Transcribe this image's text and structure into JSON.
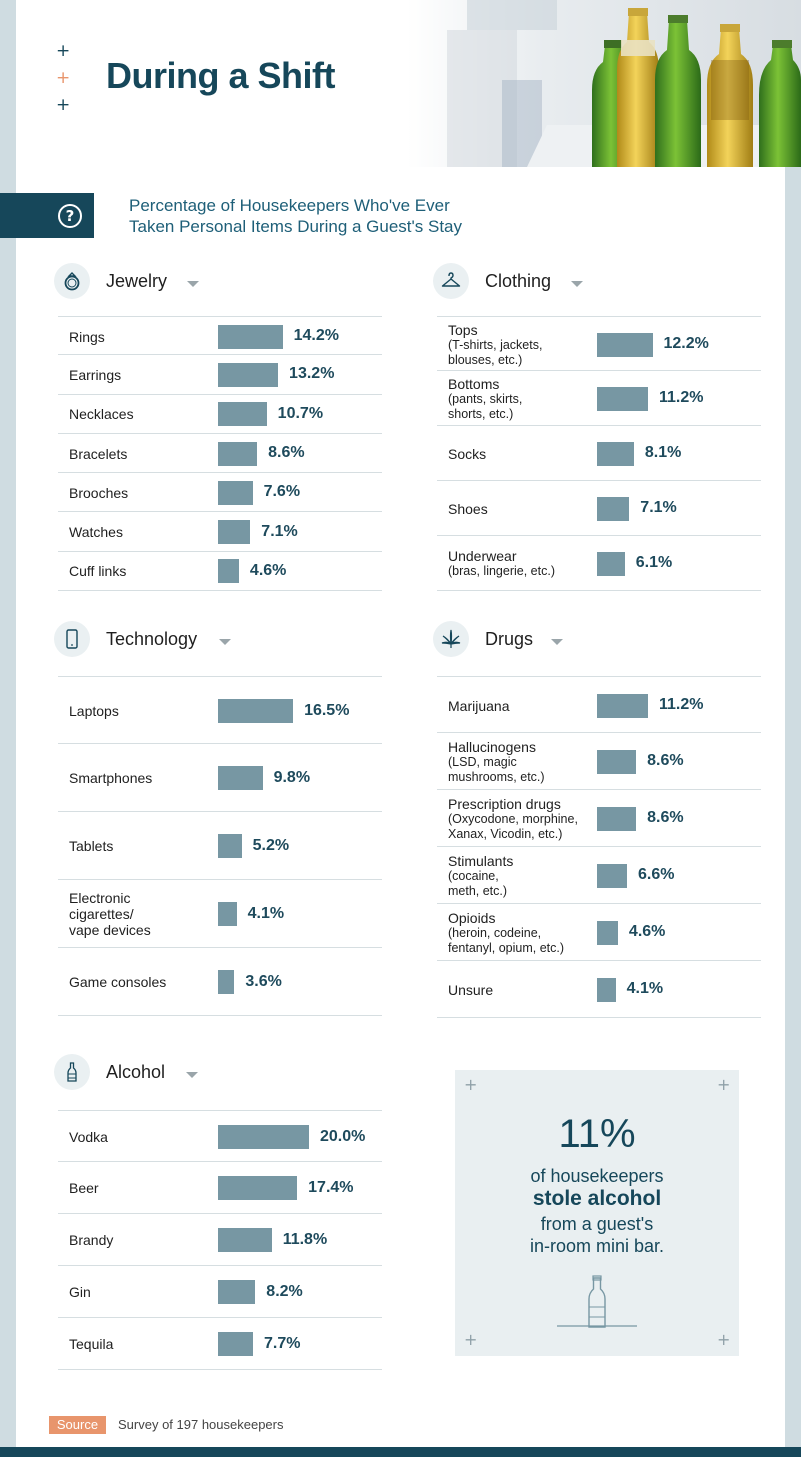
{
  "title": "During a Shift",
  "subtitle": [
    "Percentage of Housekeepers Who've Ever",
    "Taken Personal Items During a Guest's Stay"
  ],
  "colors": {
    "dark_teal": "#16475a",
    "bar": "#7797a3",
    "accent_orange": "#e8956c",
    "plus": "#16475a"
  },
  "sections": {
    "jewelry": {
      "title": "Jewelry",
      "icon": "ring-icon"
    },
    "clothing": {
      "title": "Clothing",
      "icon": "hanger-icon"
    },
    "technology": {
      "title": "Technology",
      "icon": "smartphone-icon"
    },
    "drugs": {
      "title": "Drugs",
      "icon": "cannabis-leaf-icon"
    },
    "alcohol": {
      "title": "Alcohol",
      "icon": "bottle-icon"
    }
  },
  "chart_data": [
    {
      "type": "bar",
      "title": "Jewelry",
      "categories": [
        "Rings",
        "Earrings",
        "Necklaces",
        "Bracelets",
        "Brooches",
        "Watches",
        "Cuff links"
      ],
      "sublabels": [
        "",
        "",
        "",
        "",
        "",
        "",
        ""
      ],
      "values": [
        14.2,
        13.2,
        10.7,
        8.6,
        7.6,
        7.1,
        4.6
      ],
      "labels": [
        "14.2%",
        "13.2%",
        "10.7%",
        "8.6%",
        "7.6%",
        "7.1%",
        "4.6%"
      ]
    },
    {
      "type": "bar",
      "title": "Clothing",
      "categories": [
        "Tops",
        "Bottoms",
        "Socks",
        "Shoes",
        "Underwear"
      ],
      "sublabels": [
        "(T-shirts, jackets,\nblouses, etc.)",
        "(pants, skirts,\nshorts, etc.)",
        "",
        "",
        "(bras, lingerie, etc.)"
      ],
      "values": [
        12.2,
        11.2,
        8.1,
        7.1,
        6.1
      ],
      "labels": [
        "12.2%",
        "11.2%",
        "8.1%",
        "7.1%",
        "6.1%"
      ]
    },
    {
      "type": "bar",
      "title": "Technology",
      "categories": [
        "Laptops",
        "Smartphones",
        "Tablets",
        "Electronic\ncigarettes/\nvape devices",
        "Game consoles"
      ],
      "sublabels": [
        "",
        "",
        "",
        "",
        ""
      ],
      "values": [
        16.5,
        9.8,
        5.2,
        4.1,
        3.6
      ],
      "labels": [
        "16.5%",
        "9.8%",
        "5.2%",
        "4.1%",
        "3.6%"
      ]
    },
    {
      "type": "bar",
      "title": "Drugs",
      "categories": [
        "Marijuana",
        "Hallucinogens",
        "Prescription drugs",
        "Stimulants",
        "Opioids",
        "Unsure"
      ],
      "sublabels": [
        "",
        "(LSD, magic\nmushrooms, etc.)",
        "(Oxycodone, morphine,\nXanax, Vicodin, etc.)",
        "(cocaine,\nmeth, etc.)",
        "(heroin, codeine,\nfentanyl, opium, etc.)",
        ""
      ],
      "values": [
        11.2,
        8.6,
        8.6,
        6.6,
        4.6,
        4.1
      ],
      "labels": [
        "11.2%",
        "8.6%",
        "8.6%",
        "6.6%",
        "4.6%",
        "4.1%"
      ]
    },
    {
      "type": "bar",
      "title": "Alcohol",
      "categories": [
        "Vodka",
        "Beer",
        "Brandy",
        "Gin",
        "Tequila"
      ],
      "sublabels": [
        "",
        "",
        "",
        "",
        ""
      ],
      "values": [
        20.0,
        17.4,
        11.8,
        8.2,
        7.7
      ],
      "labels": [
        "20.0%",
        "17.4%",
        "11.8%",
        "8.2%",
        "7.7%"
      ]
    }
  ],
  "callout": {
    "big_number": "11%",
    "line1": "of housekeepers",
    "line2": "stole alcohol",
    "line3": "from a guest's",
    "line4": "in-room mini bar."
  },
  "source": {
    "badge": "Source",
    "text": "Survey of 197 housekeepers"
  }
}
